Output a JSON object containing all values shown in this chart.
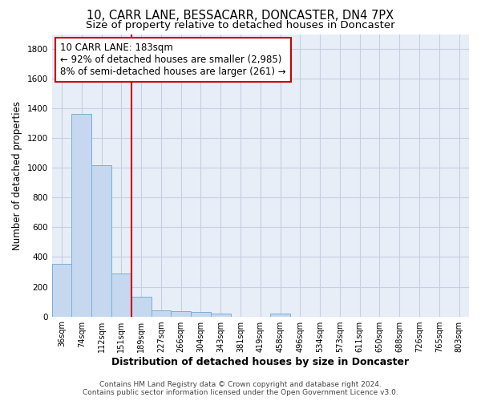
{
  "title": "10, CARR LANE, BESSACARR, DONCASTER, DN4 7PX",
  "subtitle": "Size of property relative to detached houses in Doncaster",
  "xlabel": "Distribution of detached houses by size in Doncaster",
  "ylabel": "Number of detached properties",
  "categories": [
    "36sqm",
    "74sqm",
    "112sqm",
    "151sqm",
    "189sqm",
    "227sqm",
    "266sqm",
    "304sqm",
    "343sqm",
    "381sqm",
    "419sqm",
    "458sqm",
    "496sqm",
    "534sqm",
    "573sqm",
    "611sqm",
    "650sqm",
    "688sqm",
    "726sqm",
    "765sqm",
    "803sqm"
  ],
  "values": [
    355,
    1365,
    1015,
    290,
    130,
    43,
    35,
    28,
    20,
    0,
    0,
    20,
    0,
    0,
    0,
    0,
    0,
    0,
    0,
    0,
    0
  ],
  "bar_color": "#c5d8f0",
  "bar_edgecolor": "#7aafd4",
  "vline_color": "#cc0000",
  "annotation_line1": "10 CARR LANE: 183sqm",
  "annotation_line2": "← 92% of detached houses are smaller (2,985)",
  "annotation_line3": "8% of semi-detached houses are larger (261) →",
  "annotation_box_color": "#cc0000",
  "ylim": [
    0,
    1900
  ],
  "yticks": [
    0,
    200,
    400,
    600,
    800,
    1000,
    1200,
    1400,
    1600,
    1800
  ],
  "footer_line1": "Contains HM Land Registry data © Crown copyright and database right 2024.",
  "footer_line2": "Contains public sector information licensed under the Open Government Licence v3.0.",
  "background_color": "#e8eef8",
  "grid_color": "#c5cfe0",
  "title_fontsize": 10.5,
  "subtitle_fontsize": 9.5,
  "tick_fontsize": 7,
  "ylabel_fontsize": 8.5,
  "xlabel_fontsize": 9,
  "annotation_fontsize": 8.5,
  "footer_fontsize": 6.5
}
